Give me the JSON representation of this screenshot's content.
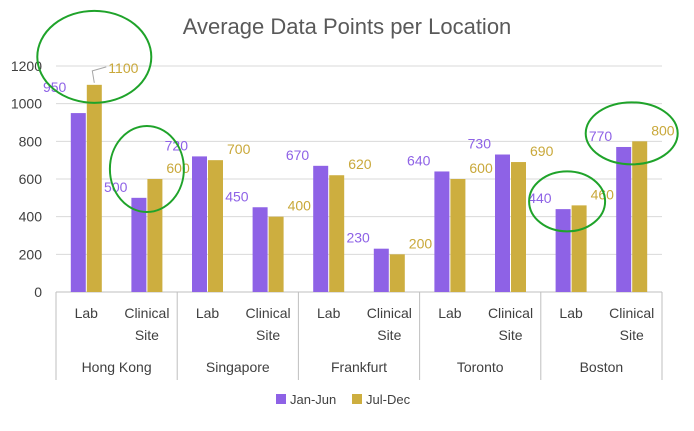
{
  "chart_data": {
    "type": "bar",
    "title": "Average Data Points per Location",
    "ylim": [
      0,
      1200
    ],
    "yticks": [
      0,
      200,
      400,
      600,
      800,
      1000,
      1200
    ],
    "grid": true,
    "legend_position": "bottom",
    "groups": [
      {
        "name": "Hong Kong",
        "categories": [
          "Lab",
          "Clinical Site"
        ]
      },
      {
        "name": "Singapore",
        "categories": [
          "Lab",
          "Clinical Site"
        ]
      },
      {
        "name": "Frankfurt",
        "categories": [
          "Lab",
          "Clinical Site"
        ]
      },
      {
        "name": "Toronto",
        "categories": [
          "Lab",
          "Clinical Site"
        ]
      },
      {
        "name": "Boston",
        "categories": [
          "Lab",
          "Clinical Site"
        ]
      }
    ],
    "series": [
      {
        "name": "Jan-Jun",
        "color": "#8E62E6",
        "label_color": "#8E62E6",
        "values": [
          950,
          500,
          720,
          450,
          670,
          230,
          640,
          730,
          440,
          770
        ]
      },
      {
        "name": "Jul-Dec",
        "color": "#CDAE3F",
        "label_color": "#C9A83A",
        "values": [
          1100,
          600,
          700,
          400,
          620,
          200,
          600,
          690,
          460,
          800
        ]
      }
    ],
    "highlighted_categories": [
      0,
      1,
      8,
      9
    ],
    "highlight_color": "#1FA32A"
  }
}
